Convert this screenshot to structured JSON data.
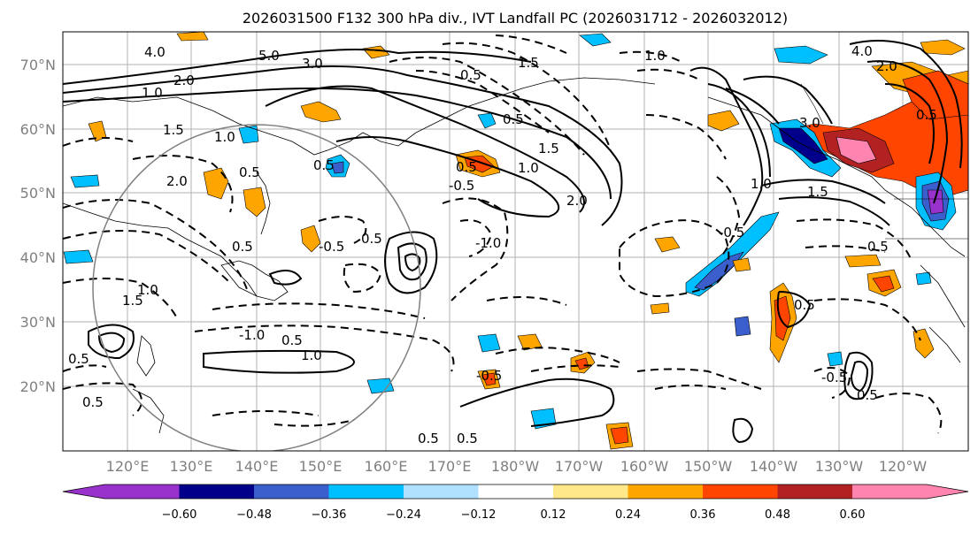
{
  "title": "2026031500 F132 300 hPa div., IVT Landfall PC (2026031712 - 2026032012)",
  "map": {
    "lat_labels": [
      "70°N",
      "60°N",
      "50°N",
      "40°N",
      "30°N",
      "20°N"
    ],
    "lon_labels": [
      "120°E",
      "130°E",
      "140°E",
      "150°E",
      "160°E",
      "170°E",
      "180°W",
      "170°W",
      "160°W",
      "150°W",
      "140°W",
      "130°W",
      "120°W"
    ],
    "contour_labels": [
      "4.0",
      "5.0",
      "3.0",
      "2.0",
      "1.5",
      "1.0",
      "0.5",
      "2.0",
      "1.0",
      "0.5",
      "1.5",
      "1.0",
      "0.5",
      "0.5",
      "0.5",
      "0.5",
      "-0.5",
      "-1.0",
      "0.5",
      "1.0",
      "-1.0",
      "-0.5",
      "0.5",
      "1.0",
      "1.5",
      "0.5",
      "0.5",
      "-0.5",
      "2.0",
      "1.5",
      "0.5",
      "1.0",
      "-0.5",
      "0.5",
      "4.0",
      "3.0",
      "2.0",
      "1.5",
      "1.0",
      "0.5",
      "0.5",
      "-0.5",
      "0.5",
      "0.5"
    ]
  },
  "colorbar": {
    "colors": [
      "#9932cc",
      "#00008b",
      "#3a5fcd",
      "#00bfff",
      "#b0e0ff",
      "#ffffff",
      "#ffe88a",
      "#ffa500",
      "#ff4500",
      "#b22222",
      "#ff85b0"
    ],
    "ticks": [
      "−0.60",
      "−0.48",
      "−0.36",
      "−0.24",
      "−0.12",
      "0.12",
      "0.24",
      "0.36",
      "0.48",
      "0.60"
    ]
  }
}
